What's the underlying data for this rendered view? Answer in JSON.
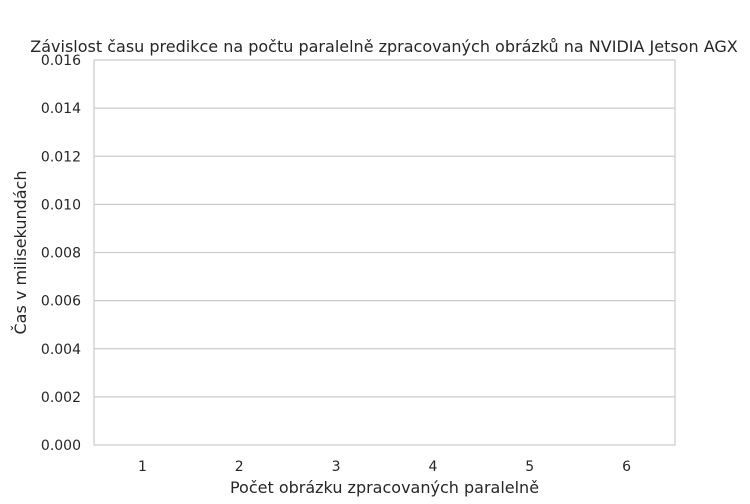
{
  "chart_data": {
    "type": "bar",
    "title": "Závislost času predikce na počtu paralelně zpracovaných obrázků na NVIDIA Jetson AGX",
    "xlabel": "Počet obrázku zpracovaných paralelně",
    "ylabel": "Čas v milisekundách",
    "categories": [
      "1",
      "2",
      "3",
      "4",
      "5",
      "6"
    ],
    "values": [
      null,
      null,
      null,
      null,
      null,
      null
    ],
    "ylim": [
      0,
      0.016
    ],
    "yticks": [
      "0.000",
      "0.002",
      "0.004",
      "0.006",
      "0.008",
      "0.010",
      "0.012",
      "0.014",
      "0.016"
    ],
    "grid": "horizontal",
    "colors": {
      "grid": "#cccccc",
      "frame": "#cccccc",
      "text": "#262626",
      "bar": "#4c72b0"
    }
  }
}
